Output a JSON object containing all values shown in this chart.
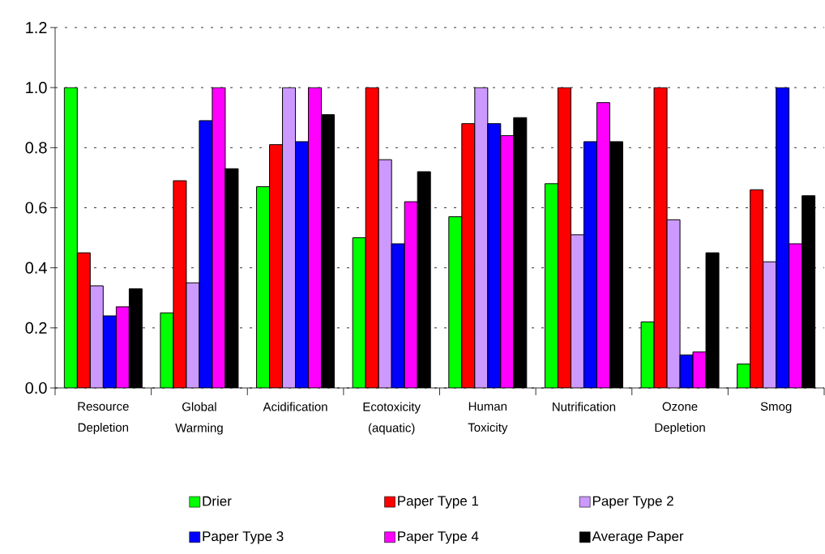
{
  "chart_data": {
    "type": "bar",
    "categories": [
      "Resource Depletion",
      "Global Warming",
      "Acidification",
      "Ecotoxicity (aquatic)",
      "Human Toxicity",
      "Nutrification",
      "Ozone Depletion",
      "Smog"
    ],
    "series": [
      {
        "name": "Drier",
        "color": "#00ff00",
        "values": [
          1.0,
          0.25,
          0.67,
          0.5,
          0.57,
          0.68,
          0.22,
          0.08
        ]
      },
      {
        "name": "Paper Type 1",
        "color": "#ff0000",
        "values": [
          0.45,
          0.69,
          0.81,
          1.0,
          0.88,
          1.0,
          1.0,
          0.66
        ]
      },
      {
        "name": "Paper Type 2",
        "color": "#cc99ff",
        "values": [
          0.34,
          0.35,
          1.0,
          0.76,
          1.0,
          0.51,
          0.56,
          0.42
        ]
      },
      {
        "name": "Paper Type 3",
        "color": "#0000ff",
        "values": [
          0.24,
          0.89,
          0.82,
          0.48,
          0.88,
          0.82,
          0.11,
          1.0
        ]
      },
      {
        "name": "Paper Type 4",
        "color": "#ff00ff",
        "values": [
          0.27,
          1.0,
          1.0,
          0.62,
          0.84,
          0.95,
          0.12,
          0.48
        ]
      },
      {
        "name": "Average Paper",
        "color": "#000000",
        "values": [
          0.33,
          0.73,
          0.91,
          0.72,
          0.9,
          0.82,
          0.45,
          0.64
        ]
      }
    ],
    "ylim": [
      0,
      1.2
    ],
    "yticks": [
      {
        "value": 0,
        "label": "0.0"
      },
      0.2,
      0.4,
      0.6,
      0.8,
      {
        "value": 1,
        "label": "1.0"
      },
      1.2
    ],
    "grid": "y",
    "legend": "bottom"
  }
}
